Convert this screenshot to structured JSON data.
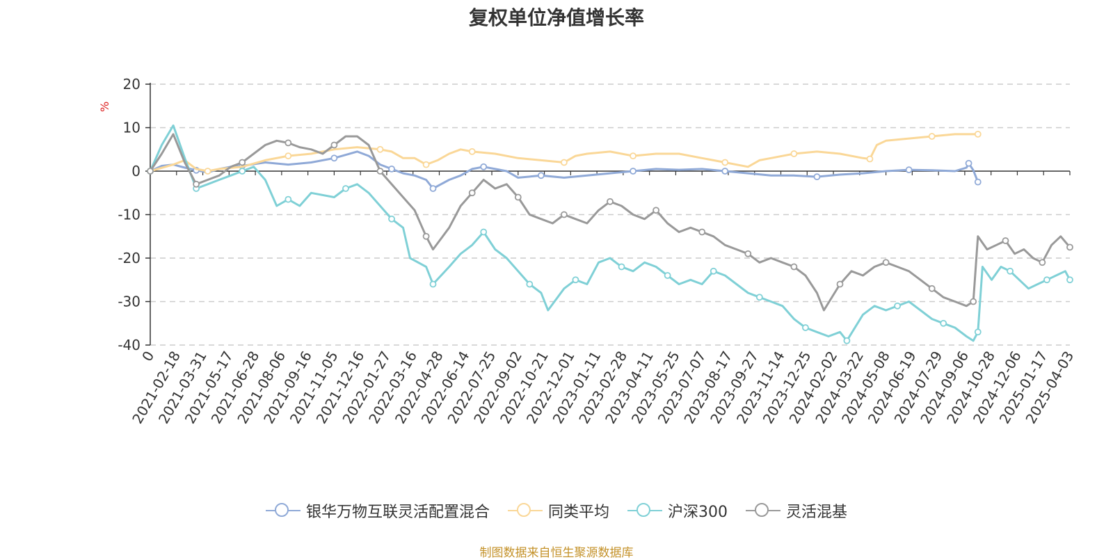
{
  "chart_data": {
    "type": "line",
    "title": "复权单位净值增长率",
    "ylabel": "%",
    "ylim": [
      -40,
      20
    ],
    "yticks": [
      "20",
      "10",
      "0",
      "-10",
      "-20",
      "-30",
      "-40"
    ],
    "x_tick_labels": [
      "0",
      "2021-02-18",
      "2021-03-31",
      "2021-05-17",
      "2021-06-28",
      "2021-08-06",
      "2021-09-16",
      "2021-11-05",
      "2021-12-16",
      "2022-01-27",
      "2022-03-16",
      "2022-04-28",
      "2022-06-14",
      "2022-07-25",
      "2022-09-02",
      "2022-10-21",
      "2022-12-01",
      "2023-01-11",
      "2023-02-28",
      "2023-04-11",
      "2023-05-25",
      "2023-07-07",
      "2023-08-17",
      "2023-09-27",
      "2023-11-14",
      "2023-12-25",
      "2024-02-02",
      "2024-03-22",
      "2024-05-08",
      "2024-06-19",
      "2024-07-29",
      "2024-09-06",
      "2024-10-28",
      "2024-12-06",
      "2025-01-17",
      "2025-04-03"
    ],
    "x_index_range": [
      0,
      36
    ],
    "series": [
      {
        "name": "银华万物互联灵活配置混合",
        "color": "#8fa9d7",
        "points": [
          [
            0,
            0
          ],
          [
            0.5,
            1.2
          ],
          [
            1,
            1.5
          ],
          [
            1.5,
            0.8
          ],
          [
            2,
            0.2
          ],
          [
            2.5,
            -0.3
          ],
          [
            3,
            0.5
          ],
          [
            3.5,
            1
          ],
          [
            4,
            1.2
          ],
          [
            5,
            2
          ],
          [
            6,
            1.5
          ],
          [
            7,
            2
          ],
          [
            8,
            3
          ],
          [
            9,
            4.5
          ],
          [
            9.5,
            3.5
          ],
          [
            10,
            1.5
          ],
          [
            10.5,
            0.5
          ],
          [
            11,
            -0.5
          ],
          [
            11.5,
            -1
          ],
          [
            12,
            -2
          ],
          [
            12.3,
            -4
          ],
          [
            13,
            -2
          ],
          [
            13.5,
            -1
          ],
          [
            14,
            0.5
          ],
          [
            14.5,
            1
          ],
          [
            15,
            0.5
          ],
          [
            15.5,
            0
          ],
          [
            16,
            -1.5
          ],
          [
            17,
            -1
          ],
          [
            18,
            -1.5
          ],
          [
            19,
            -1
          ],
          [
            20,
            -0.5
          ],
          [
            21,
            0
          ],
          [
            22,
            0.5
          ],
          [
            23,
            0.3
          ],
          [
            24,
            0.5
          ],
          [
            25,
            0
          ],
          [
            26,
            -0.5
          ],
          [
            27,
            -1
          ],
          [
            28,
            -1
          ],
          [
            29,
            -1.3
          ],
          [
            30,
            -0.8
          ],
          [
            31,
            -0.5
          ],
          [
            32,
            0
          ],
          [
            33,
            0.3
          ],
          [
            34,
            0.2
          ],
          [
            35,
            0
          ],
          [
            35.5,
            0.8
          ],
          [
            35.6,
            1.8
          ],
          [
            35.8,
            0.2
          ],
          [
            36,
            -2.5
          ]
        ]
      },
      {
        "name": "同类平均",
        "color": "#fad797",
        "points": [
          [
            0,
            0
          ],
          [
            1,
            1.5
          ],
          [
            1.5,
            2.5
          ],
          [
            2,
            0.5
          ],
          [
            2.5,
            0
          ],
          [
            3,
            0.5
          ],
          [
            4,
            1
          ],
          [
            5,
            2.5
          ],
          [
            6,
            3.5
          ],
          [
            7,
            4
          ],
          [
            8,
            5
          ],
          [
            9,
            5.5
          ],
          [
            10,
            5
          ],
          [
            10.5,
            4.5
          ],
          [
            11,
            3
          ],
          [
            11.5,
            3
          ],
          [
            12,
            1.5
          ],
          [
            12.5,
            2.5
          ],
          [
            13,
            4
          ],
          [
            13.5,
            5
          ],
          [
            14,
            4.5
          ],
          [
            15,
            4
          ],
          [
            16,
            3
          ],
          [
            17,
            2.5
          ],
          [
            18,
            2
          ],
          [
            18.5,
            3.5
          ],
          [
            19,
            4
          ],
          [
            20,
            4.5
          ],
          [
            21,
            3.5
          ],
          [
            22,
            4
          ],
          [
            23,
            4
          ],
          [
            24,
            3
          ],
          [
            25,
            2
          ],
          [
            26,
            1
          ],
          [
            26.5,
            2.5
          ],
          [
            27,
            3
          ],
          [
            28,
            4
          ],
          [
            29,
            4.5
          ],
          [
            30,
            4
          ],
          [
            31,
            3
          ],
          [
            31.3,
            2.8
          ],
          [
            31.6,
            6
          ],
          [
            32,
            7
          ],
          [
            33,
            7.5
          ],
          [
            34,
            8
          ],
          [
            35,
            8.5
          ],
          [
            36,
            8.5
          ]
        ]
      },
      {
        "name": "沪深300",
        "color": "#7fd0d6",
        "points": [
          [
            0,
            0
          ],
          [
            0.5,
            6
          ],
          [
            1,
            10.5
          ],
          [
            1.5,
            3
          ],
          [
            2,
            -4
          ],
          [
            2.5,
            -3
          ],
          [
            3,
            -2
          ],
          [
            3.5,
            -1
          ],
          [
            4,
            0
          ],
          [
            4.5,
            1
          ],
          [
            5,
            -2
          ],
          [
            5.5,
            -8
          ],
          [
            6,
            -6.5
          ],
          [
            6.5,
            -8
          ],
          [
            7,
            -5
          ],
          [
            8,
            -6
          ],
          [
            8.5,
            -4
          ],
          [
            9,
            -3
          ],
          [
            9.5,
            -5
          ],
          [
            10,
            -8
          ],
          [
            10.5,
            -11
          ],
          [
            11,
            -13
          ],
          [
            11.3,
            -20
          ],
          [
            12,
            -22
          ],
          [
            12.3,
            -26
          ],
          [
            13,
            -22
          ],
          [
            13.5,
            -19
          ],
          [
            14,
            -17
          ],
          [
            14.5,
            -14
          ],
          [
            15,
            -18
          ],
          [
            15.5,
            -20
          ],
          [
            16,
            -23
          ],
          [
            16.5,
            -26
          ],
          [
            17,
            -28
          ],
          [
            17.3,
            -32
          ],
          [
            18,
            -27
          ],
          [
            18.5,
            -25
          ],
          [
            19,
            -26
          ],
          [
            19.5,
            -21
          ],
          [
            20,
            -20
          ],
          [
            20.5,
            -22
          ],
          [
            21,
            -23
          ],
          [
            21.5,
            -21
          ],
          [
            22,
            -22
          ],
          [
            22.5,
            -24
          ],
          [
            23,
            -26
          ],
          [
            23.5,
            -25
          ],
          [
            24,
            -26
          ],
          [
            24.5,
            -23
          ],
          [
            25,
            -24
          ],
          [
            25.5,
            -26
          ],
          [
            26,
            -28
          ],
          [
            26.5,
            -29
          ],
          [
            27,
            -30
          ],
          [
            27.5,
            -31
          ],
          [
            28,
            -34
          ],
          [
            28.5,
            -36
          ],
          [
            29,
            -37
          ],
          [
            29.5,
            -38
          ],
          [
            30,
            -37
          ],
          [
            30.3,
            -39
          ],
          [
            31,
            -33
          ],
          [
            31.5,
            -31
          ],
          [
            32,
            -32
          ],
          [
            32.5,
            -31
          ],
          [
            33,
            -30
          ],
          [
            33.5,
            -32
          ],
          [
            34,
            -34
          ],
          [
            34.5,
            -35
          ],
          [
            35,
            -36
          ],
          [
            35.5,
            -38
          ],
          [
            35.8,
            -39
          ],
          [
            36,
            -37
          ],
          [
            36.2,
            -22
          ],
          [
            36.6,
            -25
          ],
          [
            37,
            -22
          ],
          [
            37.4,
            -23
          ],
          [
            37.8,
            -25
          ],
          [
            38.2,
            -27
          ],
          [
            38.6,
            -26
          ],
          [
            39,
            -25
          ],
          [
            39.4,
            -24
          ],
          [
            39.8,
            -23
          ],
          [
            40,
            -25
          ]
        ]
      },
      {
        "name": "灵活混基",
        "color": "#999999",
        "points": [
          [
            0,
            0
          ],
          [
            0.5,
            4
          ],
          [
            1,
            8.5
          ],
          [
            1.5,
            2
          ],
          [
            2,
            -3
          ],
          [
            2.5,
            -2
          ],
          [
            3,
            -1
          ],
          [
            3.5,
            1
          ],
          [
            4,
            2
          ],
          [
            4.5,
            4
          ],
          [
            5,
            6
          ],
          [
            5.5,
            7
          ],
          [
            6,
            6.5
          ],
          [
            6.5,
            5.5
          ],
          [
            7,
            5
          ],
          [
            7.5,
            4
          ],
          [
            8,
            6
          ],
          [
            8.5,
            8
          ],
          [
            9,
            8
          ],
          [
            9.5,
            6
          ],
          [
            10,
            0
          ],
          [
            10.5,
            -3
          ],
          [
            11,
            -6
          ],
          [
            11.5,
            -9
          ],
          [
            12,
            -15
          ],
          [
            12.3,
            -18
          ],
          [
            13,
            -13
          ],
          [
            13.5,
            -8
          ],
          [
            14,
            -5
          ],
          [
            14.5,
            -2
          ],
          [
            15,
            -4
          ],
          [
            15.5,
            -3
          ],
          [
            16,
            -6
          ],
          [
            16.5,
            -10
          ],
          [
            17,
            -11
          ],
          [
            17.5,
            -12
          ],
          [
            18,
            -10
          ],
          [
            18.5,
            -11
          ],
          [
            19,
            -12
          ],
          [
            19.5,
            -9
          ],
          [
            20,
            -7
          ],
          [
            20.5,
            -8
          ],
          [
            21,
            -10
          ],
          [
            21.5,
            -11
          ],
          [
            22,
            -9
          ],
          [
            22.5,
            -12
          ],
          [
            23,
            -14
          ],
          [
            23.5,
            -13
          ],
          [
            24,
            -14
          ],
          [
            24.5,
            -15
          ],
          [
            25,
            -17
          ],
          [
            25.5,
            -18
          ],
          [
            26,
            -19
          ],
          [
            26.5,
            -21
          ],
          [
            27,
            -20
          ],
          [
            27.5,
            -21
          ],
          [
            28,
            -22
          ],
          [
            28.5,
            -24
          ],
          [
            29,
            -28
          ],
          [
            29.3,
            -32
          ],
          [
            30,
            -26
          ],
          [
            30.5,
            -23
          ],
          [
            31,
            -24
          ],
          [
            31.5,
            -22
          ],
          [
            32,
            -21
          ],
          [
            32.5,
            -22
          ],
          [
            33,
            -23
          ],
          [
            33.5,
            -25
          ],
          [
            34,
            -27
          ],
          [
            34.5,
            -29
          ],
          [
            35,
            -30
          ],
          [
            35.5,
            -31
          ],
          [
            35.8,
            -30
          ],
          [
            36,
            -15
          ],
          [
            36.4,
            -18
          ],
          [
            36.8,
            -17
          ],
          [
            37.2,
            -16
          ],
          [
            37.6,
            -19
          ],
          [
            38,
            -18
          ],
          [
            38.4,
            -20
          ],
          [
            38.8,
            -21
          ],
          [
            39.2,
            -17
          ],
          [
            39.6,
            -15
          ],
          [
            40,
            -17.5
          ]
        ]
      }
    ]
  },
  "legend": {
    "items": [
      {
        "label": "银华万物互联灵活配置混合",
        "color": "#8fa9d7"
      },
      {
        "label": "同类平均",
        "color": "#fad797"
      },
      {
        "label": "沪深300",
        "color": "#7fd0d6"
      },
      {
        "label": "灵活混基",
        "color": "#999999"
      }
    ]
  },
  "source_text": "制图数据来自恒生聚源数据库",
  "colors": {
    "grid": "#cccccc",
    "axis": "#333333",
    "ylabel": "#dd2222",
    "source": "#c4922a"
  }
}
